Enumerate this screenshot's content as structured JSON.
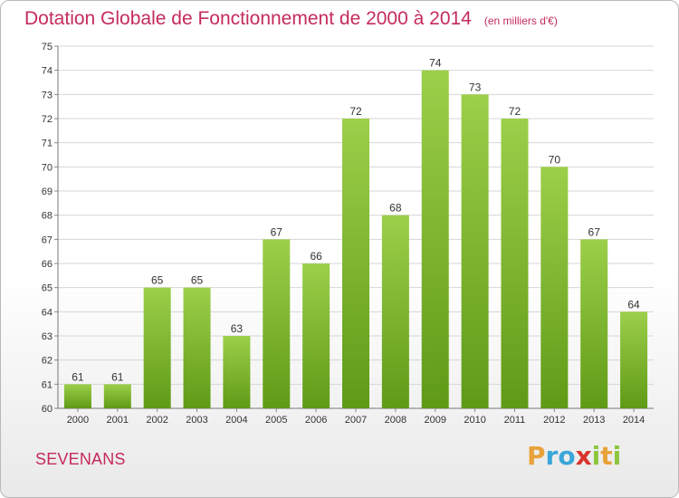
{
  "title": "Dotation Globale de Fonctionnement de 2000 à 2014",
  "subtitle": "(en milliers d'€)",
  "commune": "SEVENANS",
  "logo": {
    "text": "Proxiti",
    "letters": [
      {
        "ch": "P",
        "color": "#e8a23a"
      },
      {
        "ch": "r",
        "color": "#3aa6d9"
      },
      {
        "ch": "o",
        "color": "#3aa6d9"
      },
      {
        "ch": "x",
        "color": "#d9342b"
      },
      {
        "ch": "i",
        "color": "#8cc63f"
      },
      {
        "ch": "t",
        "color": "#e8a23a"
      },
      {
        "ch": "i",
        "color": "#8cc63f"
      }
    ]
  },
  "colors": {
    "title": "#c52b5b",
    "bar_top": "#9ccf4a",
    "bar_bottom": "#5f9a16",
    "grid": "#d6d6d6"
  },
  "chart_data": {
    "type": "bar",
    "categories": [
      "2000",
      "2001",
      "2002",
      "2003",
      "2004",
      "2005",
      "2006",
      "2007",
      "2008",
      "2009",
      "2010",
      "2011",
      "2012",
      "2013",
      "2014"
    ],
    "values": [
      61,
      61,
      65,
      65,
      63,
      67,
      66,
      72,
      68,
      74,
      73,
      72,
      70,
      67,
      64
    ],
    "ylim": [
      60,
      75
    ],
    "yticks": [
      60,
      61,
      62,
      63,
      64,
      65,
      66,
      67,
      68,
      69,
      70,
      71,
      72,
      73,
      74,
      75
    ],
    "grid": true,
    "data_labels": true
  }
}
